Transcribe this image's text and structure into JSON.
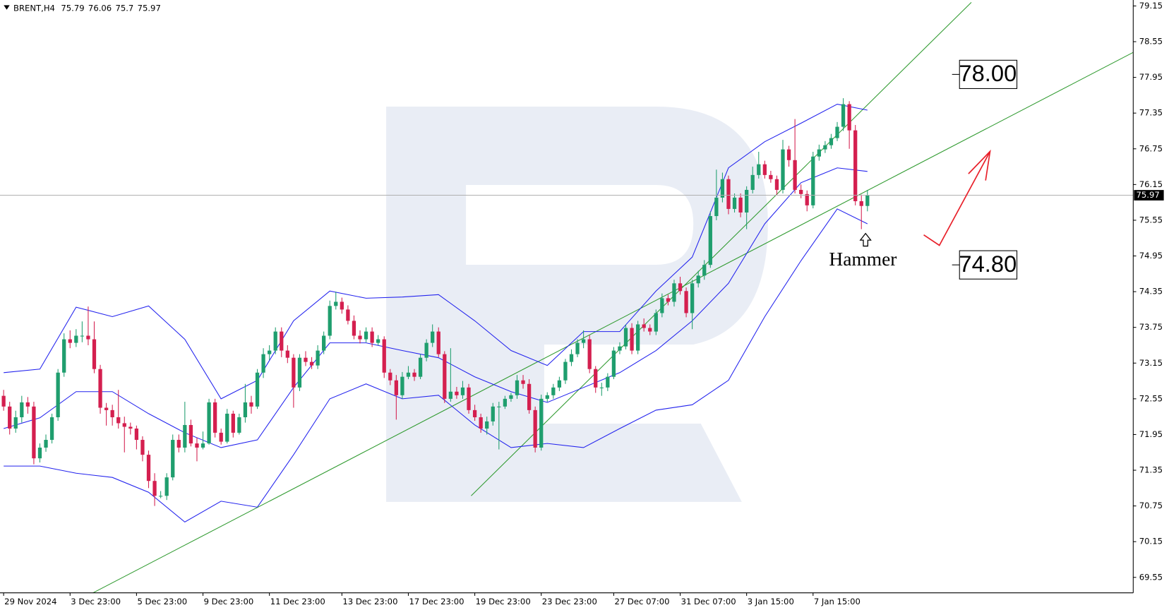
{
  "chart_data": {
    "type": "candlestick",
    "title": "BRENT,H4",
    "xlim": [
      -0.6,
      187
    ],
    "ylim": [
      69.29,
      79.25
    ],
    "yticks": [
      79.15,
      78.55,
      77.95,
      77.35,
      76.75,
      76.15,
      75.55,
      74.95,
      74.35,
      73.75,
      73.15,
      72.55,
      71.95,
      71.35,
      70.75,
      70.15,
      69.55
    ],
    "xticks": [
      {
        "value": 0,
        "label": "29 Nov 2024"
      },
      {
        "value": 11,
        "label": "3 Dec 23:00"
      },
      {
        "value": 22,
        "label": "5 Dec 23:00"
      },
      {
        "value": 33,
        "label": "9 Dec 23:00"
      },
      {
        "value": 44,
        "label": "11 Dec 23:00"
      },
      {
        "value": 56,
        "label": "13 Dec 23:00"
      },
      {
        "value": 67,
        "label": "17 Dec 23:00"
      },
      {
        "value": 78,
        "label": "19 Dec 23:00"
      },
      {
        "value": 89,
        "label": "23 Dec 23:00"
      },
      {
        "value": 101,
        "label": "27 Dec 07:00"
      },
      {
        "value": 112,
        "label": "31 Dec 07:00"
      },
      {
        "value": 123,
        "label": "3 Jan 15:00"
      },
      {
        "value": 134,
        "label": "7 Jan 15:00"
      }
    ],
    "up_color": "#1f9e6e",
    "down_color": "#d41f4f",
    "ohlc": [
      [
        72.6,
        72.7,
        72.35,
        72.42
      ],
      [
        72.42,
        72.5,
        71.95,
        72.05
      ],
      [
        72.05,
        72.35,
        71.98,
        72.24
      ],
      [
        72.24,
        72.6,
        72.15,
        72.49
      ],
      [
        72.49,
        72.58,
        72.3,
        72.42
      ],
      [
        72.42,
        72.5,
        71.45,
        71.55
      ],
      [
        71.55,
        71.8,
        71.48,
        71.73
      ],
      [
        71.73,
        71.95,
        71.66,
        71.86
      ],
      [
        71.86,
        72.3,
        71.8,
        72.24
      ],
      [
        72.24,
        73.05,
        72.18,
        72.99
      ],
      [
        72.99,
        73.65,
        72.92,
        73.55
      ],
      [
        73.55,
        73.7,
        73.4,
        73.49
      ],
      [
        73.49,
        73.72,
        73.42,
        73.61
      ],
      [
        73.61,
        73.85,
        73.5,
        73.61
      ],
      [
        73.61,
        74.1,
        73.45,
        73.55
      ],
      [
        73.55,
        73.85,
        72.98,
        73.05
      ],
      [
        73.05,
        73.12,
        72.3,
        72.4
      ],
      [
        72.4,
        72.48,
        72.1,
        72.36
      ],
      [
        72.36,
        72.45,
        72.1,
        72.24
      ],
      [
        72.24,
        72.7,
        72.05,
        72.14
      ],
      [
        72.14,
        72.25,
        71.65,
        72.08
      ],
      [
        72.08,
        72.15,
        71.95,
        72.05
      ],
      [
        72.05,
        72.1,
        71.7,
        71.86
      ],
      [
        71.86,
        71.92,
        71.5,
        71.61
      ],
      [
        71.61,
        71.68,
        71.05,
        71.17
      ],
      [
        71.17,
        71.3,
        70.75,
        70.92
      ],
      [
        70.92,
        71.0,
        70.88,
        70.92
      ],
      [
        70.92,
        71.3,
        70.85,
        71.23
      ],
      [
        71.23,
        71.95,
        71.18,
        71.86
      ],
      [
        71.86,
        71.95,
        71.65,
        71.73
      ],
      [
        71.73,
        72.5,
        71.65,
        72.11
      ],
      [
        72.11,
        72.2,
        71.75,
        71.8
      ],
      [
        71.8,
        71.9,
        71.5,
        71.73
      ],
      [
        71.73,
        72.0,
        71.7,
        71.8
      ],
      [
        71.8,
        72.55,
        71.78,
        72.49
      ],
      [
        72.49,
        72.55,
        71.9,
        71.98
      ],
      [
        71.98,
        72.05,
        71.78,
        71.83
      ],
      [
        71.83,
        72.38,
        71.8,
        72.3
      ],
      [
        72.3,
        72.35,
        71.9,
        71.98
      ],
      [
        71.98,
        72.3,
        71.95,
        72.24
      ],
      [
        72.24,
        72.8,
        72.15,
        72.49
      ],
      [
        72.49,
        72.6,
        72.3,
        72.42
      ],
      [
        72.42,
        73.05,
        72.38,
        72.99
      ],
      [
        72.99,
        73.4,
        72.9,
        73.3
      ],
      [
        73.3,
        73.45,
        73.2,
        73.36
      ],
      [
        73.36,
        73.75,
        73.3,
        73.68
      ],
      [
        73.68,
        73.75,
        73.25,
        73.36
      ],
      [
        73.36,
        73.45,
        73.15,
        73.24
      ],
      [
        73.24,
        73.3,
        72.4,
        72.74
      ],
      [
        72.74,
        73.3,
        72.68,
        73.24
      ],
      [
        73.24,
        73.35,
        73.1,
        73.17
      ],
      [
        73.17,
        73.25,
        73.05,
        73.11
      ],
      [
        73.11,
        73.45,
        73.05,
        73.36
      ],
      [
        73.36,
        73.68,
        73.3,
        73.61
      ],
      [
        73.61,
        74.2,
        73.55,
        74.11
      ],
      [
        74.11,
        74.35,
        74.05,
        74.18
      ],
      [
        74.18,
        74.25,
        73.98,
        74.05
      ],
      [
        74.05,
        74.12,
        73.8,
        73.86
      ],
      [
        73.86,
        73.95,
        73.55,
        73.61
      ],
      [
        73.61,
        73.7,
        73.48,
        73.55
      ],
      [
        73.55,
        73.75,
        73.5,
        73.68
      ],
      [
        73.68,
        73.75,
        73.42,
        73.49
      ],
      [
        73.49,
        73.62,
        73.45,
        73.55
      ],
      [
        73.55,
        73.6,
        72.9,
        72.99
      ],
      [
        72.99,
        73.05,
        72.78,
        72.86
      ],
      [
        72.86,
        72.95,
        72.2,
        72.61
      ],
      [
        72.61,
        73.0,
        72.55,
        72.92
      ],
      [
        72.92,
        73.1,
        72.88,
        72.99
      ],
      [
        72.99,
        73.05,
        72.85,
        72.92
      ],
      [
        72.92,
        73.3,
        72.88,
        73.24
      ],
      [
        73.24,
        73.55,
        73.18,
        73.49
      ],
      [
        73.49,
        73.8,
        73.42,
        73.68
      ],
      [
        73.68,
        73.75,
        73.25,
        73.3
      ],
      [
        73.3,
        73.35,
        72.48,
        72.55
      ],
      [
        72.55,
        73.4,
        72.5,
        72.67
      ],
      [
        72.67,
        72.75,
        72.55,
        72.61
      ],
      [
        72.61,
        72.85,
        72.55,
        72.74
      ],
      [
        72.74,
        72.8,
        72.3,
        72.36
      ],
      [
        72.36,
        72.45,
        72.18,
        72.24
      ],
      [
        72.24,
        72.3,
        71.98,
        72.05
      ],
      [
        72.05,
        72.25,
        71.95,
        72.17
      ],
      [
        72.17,
        72.48,
        72.1,
        72.42
      ],
      [
        72.42,
        72.5,
        71.7,
        72.42
      ],
      [
        72.42,
        72.6,
        72.38,
        72.55
      ],
      [
        72.55,
        72.65,
        72.5,
        72.61
      ],
      [
        72.61,
        72.95,
        72.55,
        72.86
      ],
      [
        72.86,
        72.95,
        72.72,
        72.8
      ],
      [
        72.8,
        72.88,
        72.3,
        72.36
      ],
      [
        72.36,
        72.42,
        71.65,
        71.73
      ],
      [
        71.73,
        72.62,
        71.68,
        72.55
      ],
      [
        72.55,
        72.66,
        72.5,
        72.61
      ],
      [
        72.61,
        72.8,
        72.55,
        72.74
      ],
      [
        72.74,
        72.92,
        72.68,
        72.86
      ],
      [
        72.86,
        73.22,
        72.8,
        73.17
      ],
      [
        73.17,
        73.38,
        73.1,
        73.3
      ],
      [
        73.3,
        73.55,
        73.25,
        73.49
      ],
      [
        73.49,
        73.7,
        73.4,
        73.55
      ],
      [
        73.55,
        73.62,
        72.98,
        73.05
      ],
      [
        73.05,
        73.1,
        72.65,
        72.74
      ],
      [
        72.74,
        72.82,
        72.6,
        72.74
      ],
      [
        72.74,
        72.98,
        72.68,
        72.92
      ],
      [
        72.92,
        73.42,
        72.88,
        73.36
      ],
      [
        73.36,
        73.5,
        73.3,
        73.43
      ],
      [
        73.43,
        73.8,
        73.38,
        73.74
      ],
      [
        73.74,
        73.82,
        73.3,
        73.36
      ],
      [
        73.36,
        73.86,
        73.3,
        73.8
      ],
      [
        73.8,
        73.9,
        73.68,
        73.74
      ],
      [
        73.74,
        73.8,
        73.62,
        73.68
      ],
      [
        73.68,
        74.05,
        73.62,
        73.99
      ],
      [
        73.99,
        74.32,
        73.92,
        74.24
      ],
      [
        74.24,
        74.3,
        74.12,
        74.18
      ],
      [
        74.18,
        74.55,
        74.1,
        74.49
      ],
      [
        74.49,
        74.6,
        74.3,
        74.36
      ],
      [
        74.36,
        74.42,
        73.92,
        73.99
      ],
      [
        73.99,
        74.55,
        73.72,
        74.49
      ],
      [
        74.49,
        74.7,
        74.42,
        74.62
      ],
      [
        74.62,
        74.88,
        74.55,
        74.8
      ],
      [
        74.8,
        75.7,
        74.75,
        75.62
      ],
      [
        75.62,
        76.4,
        75.55,
        75.93
      ],
      [
        75.93,
        76.35,
        75.85,
        76.24
      ],
      [
        76.24,
        76.3,
        75.65,
        75.74
      ],
      [
        75.74,
        76.0,
        75.68,
        75.93
      ],
      [
        75.93,
        76.0,
        75.6,
        75.68
      ],
      [
        75.68,
        76.12,
        75.4,
        76.06
      ],
      [
        76.06,
        76.45,
        76.0,
        76.31
      ],
      [
        76.31,
        76.7,
        76.25,
        76.49
      ],
      [
        76.49,
        76.55,
        76.25,
        76.31
      ],
      [
        76.31,
        76.38,
        76.18,
        76.24
      ],
      [
        76.24,
        76.3,
        75.98,
        76.06
      ],
      [
        76.06,
        76.9,
        76.0,
        76.74
      ],
      [
        76.74,
        76.8,
        76.45,
        76.56
      ],
      [
        76.56,
        77.25,
        76.0,
        76.06
      ],
      [
        76.06,
        76.15,
        75.92,
        75.99
      ],
      [
        75.99,
        76.05,
        75.7,
        75.8
      ],
      [
        75.8,
        76.7,
        75.75,
        76.62
      ],
      [
        76.62,
        76.82,
        76.55,
        76.74
      ],
      [
        76.74,
        76.88,
        76.68,
        76.81
      ],
      [
        76.81,
        77.0,
        76.75,
        76.93
      ],
      [
        76.93,
        77.2,
        76.88,
        77.12
      ],
      [
        77.12,
        77.6,
        77.05,
        77.5
      ],
      [
        77.5,
        77.55,
        76.75,
        77.06
      ],
      [
        77.06,
        77.15,
        75.8,
        75.87
      ],
      [
        75.87,
        75.98,
        75.4,
        75.79
      ],
      [
        75.79,
        76.06,
        75.7,
        75.97
      ]
    ],
    "bands_x": [
      0,
      6,
      12,
      18,
      24,
      30,
      36,
      42,
      48,
      54,
      60,
      66,
      72,
      78,
      84,
      90,
      96,
      102,
      108,
      114,
      120,
      126,
      132,
      138,
      143
    ],
    "bands": [
      {
        "color": "#2323ee",
        "values": [
          72.99,
          73.05,
          74.09,
          73.93,
          74.11,
          73.55,
          72.55,
          72.86,
          73.86,
          74.36,
          74.24,
          74.26,
          74.3,
          73.86,
          73.36,
          73.11,
          73.68,
          73.68,
          74.36,
          74.93,
          76.43,
          76.87,
          77.18,
          77.5,
          77.4
        ]
      },
      {
        "color": "#2323ee",
        "values": [
          72.05,
          72.23,
          72.67,
          72.67,
          72.3,
          71.98,
          71.73,
          71.86,
          72.74,
          73.49,
          73.49,
          73.36,
          73.24,
          72.92,
          72.67,
          72.49,
          72.74,
          72.99,
          73.36,
          73.86,
          74.49,
          75.49,
          76.18,
          76.43,
          76.37
        ]
      },
      {
        "color": "#2323ee",
        "values": [
          71.42,
          71.42,
          71.3,
          71.23,
          70.98,
          70.48,
          70.83,
          70.73,
          71.61,
          72.55,
          72.8,
          72.55,
          72.61,
          72.11,
          71.73,
          71.8,
          71.73,
          72.05,
          72.36,
          72.45,
          72.86,
          73.93,
          74.87,
          75.74,
          75.49
        ]
      }
    ],
    "trendlines": [
      {
        "color": "#2f9a2f",
        "x": [
          14.8,
          187
        ],
        "y": [
          69.29,
          78.37
        ]
      },
      {
        "color": "#2f9a2f",
        "x": [
          77.4,
          160.2
        ],
        "y": [
          70.92,
          79.21
        ]
      }
    ],
    "levels": [
      {
        "value": 78,
        "label": "78.00"
      },
      {
        "value": 74.8,
        "label": "74.80"
      }
    ],
    "annotation": "Hammer"
  }
}
